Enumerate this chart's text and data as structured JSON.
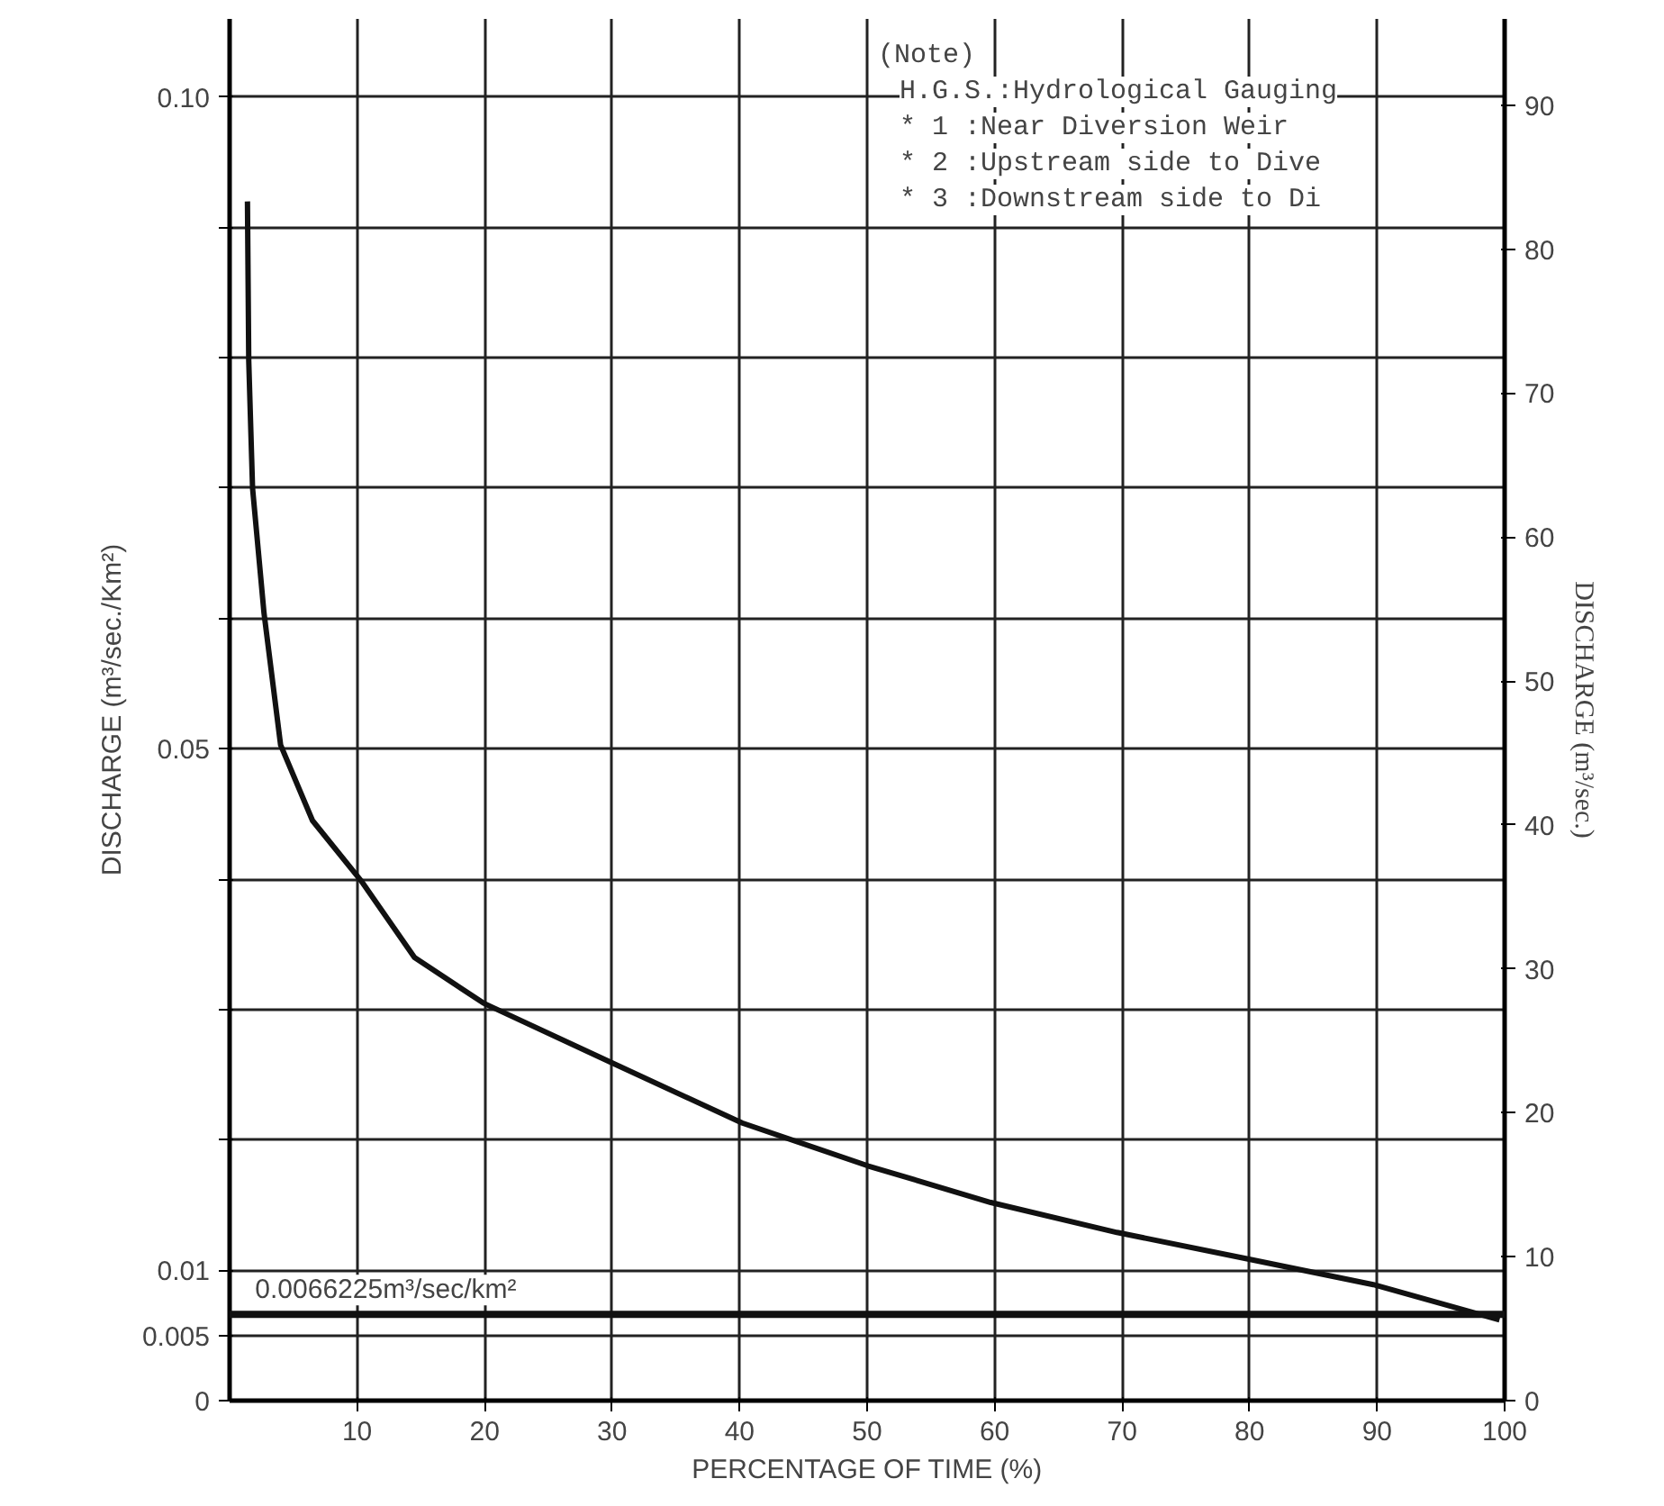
{
  "chart_data": {
    "type": "line",
    "xlabel": "PERCENTAGE OF TIME (%)",
    "ylabel": "DISCHARGE (m³/sec./Km²)",
    "y2label": "DISCHARGE (m³/sec.)",
    "x": [
      1.4,
      1.5,
      1.8,
      2.7,
      4.0,
      6.5,
      10.3,
      14.5,
      19.9,
      29.8,
      40.2,
      50.1,
      59.7,
      69.6,
      79.7,
      89.7,
      99.6
    ],
    "series": [
      {
        "color": "#111111",
        "values": [
          0.092,
          0.0798,
          0.07,
          0.0604,
          0.0503,
          0.0445,
          0.0399,
          0.034,
          0.0305,
          0.026,
          0.0213,
          0.018,
          0.0152,
          0.0129,
          0.0109,
          0.0089,
          0.0062
        ]
      }
    ],
    "xlim": [
      0,
      100
    ],
    "xticks": [
      10,
      20,
      30,
      40,
      50,
      60,
      70,
      80,
      90,
      100
    ],
    "ylim": [
      0,
      0.106
    ],
    "yticks": [
      0,
      0.005,
      0.01,
      {
        "value": 0.02,
        "label": null
      },
      {
        "value": 0.03,
        "label": null
      },
      {
        "value": 0.04,
        "label": null
      },
      0.05,
      {
        "value": 0.06,
        "label": null
      },
      {
        "value": 0.07,
        "label": null
      },
      {
        "value": 0.08,
        "label": null
      },
      {
        "value": 0.09,
        "label": null
      },
      {
        "value": 0.1,
        "label": "0.10"
      }
    ],
    "y2lim": [
      0,
      96
    ],
    "y2ticks": [
      0,
      10,
      20,
      30,
      40,
      50,
      60,
      70,
      80,
      90
    ],
    "ref_lines": [
      {
        "axis": "y",
        "value": 0.0066225,
        "label": "0.0066225m³/sec/km²",
        "color": "#111111"
      }
    ],
    "grid": true,
    "marker": "none",
    "line_style": "solid",
    "annotations": [
      "(Note)",
      "H.G.S.:Hydrological Gauging",
      "* 1  :Near Diversion Weir",
      "* 2  :Upstream side to Dive",
      "* 3  :Downstream side to Di"
    ]
  }
}
